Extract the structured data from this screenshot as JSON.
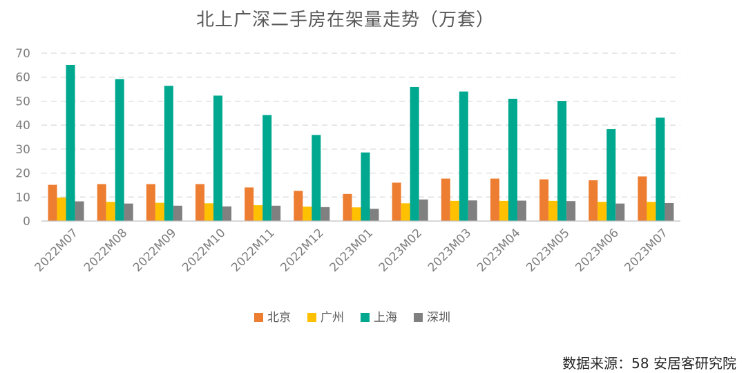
{
  "chart_data": {
    "type": "bar",
    "title": "北上广深二手房在架量走势（万套）",
    "xlabel": "",
    "ylabel": "",
    "ylim": [
      0,
      70
    ],
    "yticks": [
      0,
      10,
      20,
      30,
      40,
      50,
      60,
      70
    ],
    "grid": true,
    "legend_position": "bottom",
    "categories": [
      "2022M07",
      "2022M08",
      "2022M09",
      "2022M10",
      "2022M11",
      "2022M12",
      "2023M01",
      "2023M02",
      "2023M03",
      "2023M04",
      "2023M05",
      "2023M06",
      "2023M07"
    ],
    "series": [
      {
        "name": "北京",
        "color": "#ED7D31",
        "values": [
          15.1,
          15.4,
          15.4,
          15.4,
          14.0,
          12.6,
          11.3,
          16.0,
          17.7,
          17.7,
          17.4,
          17.0,
          18.6
        ]
      },
      {
        "name": "广州",
        "color": "#FFC000",
        "values": [
          9.8,
          8.0,
          7.6,
          7.4,
          6.6,
          6.0,
          5.7,
          7.4,
          8.4,
          8.4,
          8.4,
          8.0,
          8.0
        ]
      },
      {
        "name": "上海",
        "color": "#00A88F",
        "values": [
          65.1,
          59.2,
          56.4,
          52.3,
          44.2,
          35.9,
          28.6,
          55.9,
          54.0,
          51.0,
          50.1,
          38.3,
          43.1
        ]
      },
      {
        "name": "深圳",
        "color": "#808080",
        "values": [
          8.2,
          7.3,
          6.4,
          6.1,
          6.4,
          5.8,
          5.1,
          9.0,
          8.6,
          8.5,
          8.3,
          7.3,
          7.5
        ]
      }
    ]
  },
  "footer": {
    "source": "数据来源：58 安居客研究院"
  }
}
